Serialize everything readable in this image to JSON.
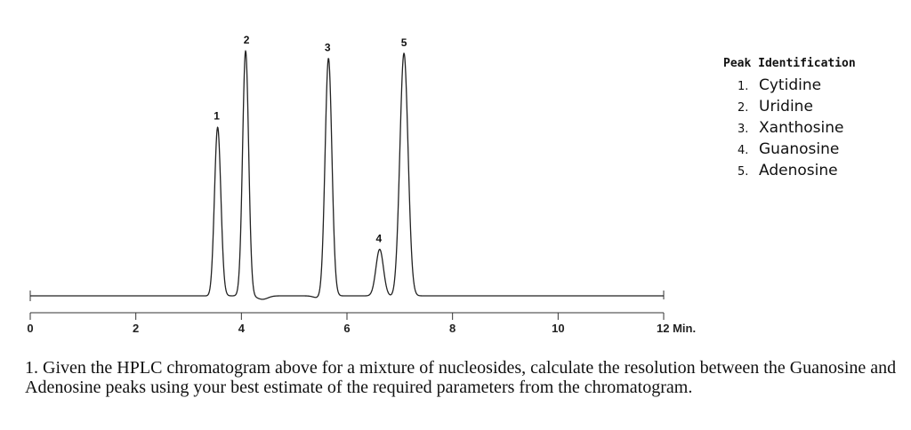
{
  "chart_data": {
    "type": "line",
    "title": "",
    "xlabel": "",
    "ylabel": "",
    "x_unit_label": "Min.",
    "xlim": [
      0,
      12
    ],
    "xticks": [
      0,
      2,
      4,
      6,
      8,
      10,
      12
    ],
    "grid": false,
    "peaks": [
      {
        "label": "1",
        "time": 3.55,
        "height": 0.69
      },
      {
        "label": "2",
        "time": 4.08,
        "height": 1.0
      },
      {
        "label": "3",
        "time": 5.65,
        "height": 0.97
      },
      {
        "label": "4",
        "time": 6.62,
        "height": 0.19
      },
      {
        "label": "5",
        "time": 7.08,
        "height": 0.99
      }
    ]
  },
  "legend": {
    "title": "Peak Identification",
    "items": [
      {
        "num": "1.",
        "name": "Cytidine"
      },
      {
        "num": "2.",
        "name": "Uridine"
      },
      {
        "num": "3.",
        "name": "Xanthosine"
      },
      {
        "num": "4.",
        "name": "Guanosine"
      },
      {
        "num": "5.",
        "name": "Adenosine"
      }
    ]
  },
  "question": {
    "text": "1. Given the HPLC chromatogram above for a mixture of nucleosides, calculate the resolution between the Guanosine and Adenosine peaks using your best estimate of the required parameters from the chromatogram."
  }
}
